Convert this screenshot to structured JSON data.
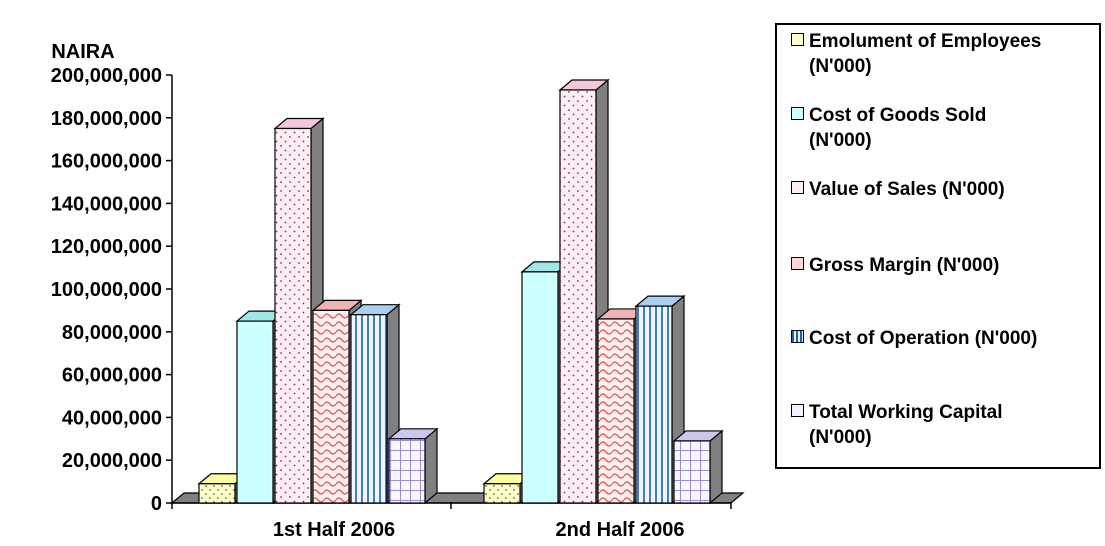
{
  "chart_data": {
    "type": "bar",
    "ylabel": "NAIRA",
    "ylim": [
      0,
      200000000
    ],
    "yticks": [
      "0",
      "20,000,000",
      "40,000,000",
      "60,000,000",
      "80,000,000",
      "100,000,000",
      "120,000,000",
      "140,000,000",
      "160,000,000",
      "180,000,000",
      "200,000,000"
    ],
    "categories": [
      "1st Half 2006",
      "2nd Half 2006"
    ],
    "legend_position": "right",
    "grid": false,
    "series": [
      {
        "name": "Emolument of Employees (N'000)",
        "values": [
          9000000,
          9000000
        ],
        "color": "#ffffcc",
        "pattern": "dots"
      },
      {
        "name": "Cost of Goods Sold (N'000)",
        "values": [
          85000000,
          108000000
        ],
        "color": "#ccffff",
        "pattern": "none"
      },
      {
        "name": "Value of Sales (N'000)",
        "values": [
          175000000,
          193000000
        ],
        "color": "#ffe4f0",
        "pattern": "dots"
      },
      {
        "name": "Gross Margin (N'000)",
        "values": [
          90000000,
          86000000
        ],
        "color": "#ffe0e0",
        "pattern": "waves"
      },
      {
        "name": "Cost of Operation (N'000)",
        "values": [
          88000000,
          92000000
        ],
        "color": "#e6f4ff",
        "pattern": "vlines"
      },
      {
        "name": "Total Working Capital (N'000)",
        "values": [
          30000000,
          29000000
        ],
        "color": "#f4f0ff",
        "pattern": "grid"
      }
    ]
  },
  "legend": {
    "items": [
      {
        "line1": "Emolument of Employees",
        "line2": "(N'000)"
      },
      {
        "line1": "Cost of Goods Sold",
        "line2": "(N'000)"
      },
      {
        "line1": "Value of Sales (N'000)",
        "line2": ""
      },
      {
        "line1": "Gross Margin (N'000)",
        "line2": ""
      },
      {
        "line1": "Cost of Operation (N'000)",
        "line2": ""
      },
      {
        "line1": "Total Working Capital",
        "line2": "(N'000)"
      }
    ]
  }
}
